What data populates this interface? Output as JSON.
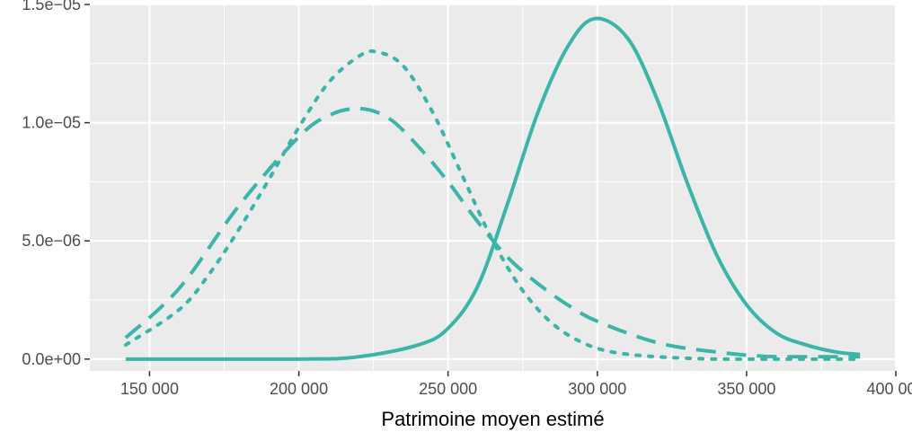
{
  "chart_data": {
    "type": "line",
    "title": "",
    "xlabel": "Patrimoine moyen estimé",
    "ylabel": "",
    "xlim": [
      130000,
      400000
    ],
    "ylim": [
      -5e-07,
      1.5e-05
    ],
    "x_ticks": [
      150000,
      200000,
      250000,
      300000,
      350000,
      400000
    ],
    "x_tick_labels": [
      "150 000",
      "200 000",
      "250 000",
      "300 000",
      "350 000",
      "400 000"
    ],
    "y_ticks": [
      0,
      5e-06,
      1e-05,
      1.5e-05
    ],
    "y_tick_labels": [
      "0.0e+00",
      "5.0e−06",
      "1.0e−05",
      "1.5e−05"
    ],
    "grid": true,
    "legend": "none",
    "color": "#3ab5a8",
    "series": [
      {
        "line_style": "solid",
        "x": [
          142000,
          200000,
          220000,
          240000,
          250000,
          260000,
          270000,
          280000,
          290000,
          299000,
          310000,
          320000,
          330000,
          340000,
          350000,
          360000,
          370000,
          380000,
          388000
        ],
        "y": [
          0,
          0,
          1e-07,
          6e-07,
          1.3e-06,
          3.1e-06,
          6.6e-06,
          1.04e-05,
          1.32e-05,
          1.44e-05,
          1.36e-05,
          1.1e-05,
          7.5e-06,
          4.4e-06,
          2.3e-06,
          1.1e-06,
          6e-07,
          3e-07,
          2e-07
        ]
      },
      {
        "line_style": "dashed",
        "x": [
          142000,
          160000,
          180000,
          200000,
          210000,
          220000,
          230000,
          240000,
          250000,
          260000,
          270000,
          280000,
          290000,
          300000,
          320000,
          340000,
          360000,
          388000
        ],
        "y": [
          9e-07,
          3e-06,
          6.5e-06,
          9.4e-06,
          1.03e-05,
          1.06e-05,
          1.02e-05,
          9e-06,
          7.5e-06,
          5.8e-06,
          4.3e-06,
          3.2e-06,
          2.3e-06,
          1.6e-06,
          7e-07,
          3e-07,
          1e-07,
          1e-07
        ]
      },
      {
        "line_style": "dotted",
        "x": [
          142000,
          160000,
          170000,
          180000,
          190000,
          200000,
          210000,
          220000,
          226000,
          235000,
          245000,
          255000,
          265000,
          275000,
          285000,
          295000,
          305000,
          320000,
          340000,
          360000,
          388000
        ],
        "y": [
          6e-07,
          2.1e-06,
          3.6e-06,
          5.5e-06,
          7.6e-06,
          9.8e-06,
          1.17e-05,
          1.28e-05,
          1.3e-05,
          1.24e-05,
          1.04e-05,
          7.7e-06,
          5e-06,
          2.9e-06,
          1.5e-06,
          7e-07,
          3e-07,
          1e-07,
          0,
          0,
          0
        ]
      }
    ]
  }
}
